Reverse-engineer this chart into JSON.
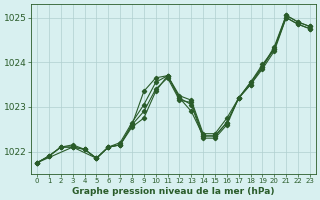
{
  "title": "Graphe pression niveau de la mer (hPa)",
  "bg_color": "#d8f0f0",
  "grid_color": "#b0d0d0",
  "line_color": "#2a5c2a",
  "xlim": [
    -0.5,
    23.5
  ],
  "ylim": [
    1021.5,
    1025.3
  ],
  "yticks": [
    1022,
    1023,
    1024,
    1025
  ],
  "xticks": [
    0,
    1,
    2,
    3,
    4,
    5,
    6,
    7,
    8,
    9,
    10,
    11,
    12,
    13,
    14,
    15,
    16,
    17,
    18,
    19,
    20,
    21,
    22,
    23
  ],
  "series": [
    {
      "x": [
        0,
        1,
        2,
        3,
        4,
        5,
        6,
        7,
        8,
        9,
        10,
        11,
        12,
        13,
        14,
        15,
        16,
        17,
        18,
        19,
        20,
        21,
        22,
        23
      ],
      "y": [
        1021.75,
        1021.9,
        1022.1,
        1022.15,
        1022.05,
        1021.85,
        1022.1,
        1022.2,
        1022.65,
        1023.05,
        1023.55,
        1023.7,
        1023.25,
        1023.15,
        1022.4,
        1022.4,
        1022.75,
        1023.2,
        1023.55,
        1023.9,
        1024.35,
        1025.05,
        1024.9,
        1024.8
      ]
    },
    {
      "x": [
        0,
        1,
        2,
        3,
        4,
        5,
        6,
        7,
        8,
        9,
        10,
        11,
        12,
        13,
        14,
        15,
        16,
        17,
        18,
        19,
        20,
        21,
        22,
        23
      ],
      "y": [
        1021.75,
        1021.9,
        1022.1,
        1022.1,
        1022.05,
        1021.85,
        1022.1,
        1022.15,
        1022.6,
        1022.9,
        1023.4,
        1023.65,
        1023.15,
        1023.1,
        1022.35,
        1022.35,
        1022.65,
        1023.2,
        1023.5,
        1023.9,
        1024.3,
        1025.0,
        1024.85,
        1024.75
      ]
    },
    {
      "x": [
        0,
        3,
        5,
        6,
        7,
        8,
        9,
        10,
        11,
        12,
        13,
        14,
        15,
        16,
        17,
        18,
        19,
        20,
        21,
        22,
        23
      ],
      "y": [
        1021.75,
        1022.1,
        1021.85,
        1022.1,
        1022.15,
        1022.6,
        1023.35,
        1023.65,
        1023.7,
        1023.2,
        1022.9,
        1022.35,
        1022.35,
        1022.65,
        1023.2,
        1023.55,
        1023.95,
        1024.3,
        1025.05,
        1024.9,
        1024.8
      ]
    },
    {
      "x": [
        0,
        1,
        2,
        3,
        4,
        5,
        6,
        7,
        8,
        9,
        10,
        11,
        12,
        13,
        14,
        15,
        16,
        17,
        18,
        19,
        20,
        21,
        22,
        23
      ],
      "y": [
        1021.75,
        1021.9,
        1022.1,
        1022.1,
        1022.05,
        1021.85,
        1022.1,
        1022.15,
        1022.55,
        1022.75,
        1023.35,
        1023.7,
        1023.2,
        1023.05,
        1022.3,
        1022.3,
        1022.6,
        1023.2,
        1023.5,
        1023.85,
        1024.25,
        1025.0,
        1024.85,
        1024.75
      ]
    }
  ]
}
